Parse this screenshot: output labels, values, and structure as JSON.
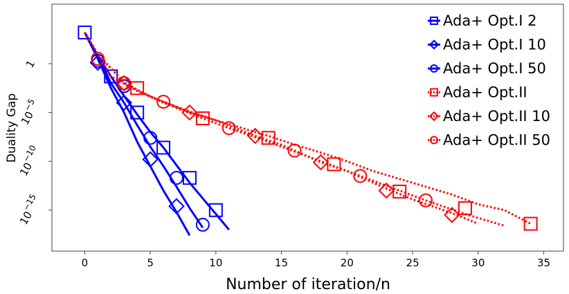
{
  "chart_data": {
    "type": "line",
    "title": "",
    "xlabel": "Number of iteration/n",
    "ylabel": "Duality Gap",
    "xlim": [
      -2.5,
      36.5
    ],
    "ylog_exponent_lim": [
      -19.2,
      6.1
    ],
    "xticks": [
      0,
      5,
      10,
      15,
      20,
      25,
      30,
      35
    ],
    "xtick_labels": [
      "0",
      "5",
      "10",
      "15",
      "20",
      "25",
      "30",
      "35"
    ],
    "yticks": [
      {
        "exp": 0,
        "base": "1",
        "sup": ""
      },
      {
        "exp": -5,
        "base": "10",
        "sup": "−5"
      },
      {
        "exp": -10,
        "base": "10",
        "sup": "−10"
      },
      {
        "exp": -15,
        "base": "10",
        "sup": "−15"
      }
    ],
    "legend_location": "top-right",
    "series": [
      {
        "name": "Ada+ Opt.I 2",
        "color": "#0000ff",
        "linestyle": "solid",
        "marker": "square",
        "x": [
          0,
          1,
          2,
          3,
          4,
          5,
          6,
          7,
          8,
          9,
          10,
          11
        ],
        "y_log10": [
          3.2,
          0.8,
          -1.3,
          -3.3,
          -5.2,
          -7.0,
          -8.6,
          -10.4,
          -12.2,
          -13.8,
          -15.4,
          -17.0
        ],
        "marker_points": [
          [
            0,
            3.2
          ],
          [
            2,
            -1.3
          ],
          [
            4,
            -5.0
          ],
          [
            6,
            -8.6
          ],
          [
            8,
            -11.7
          ],
          [
            10,
            -15.0
          ]
        ]
      },
      {
        "name": "Ada+ Opt.I 10",
        "color": "#0000ff",
        "linestyle": "solid",
        "marker": "diamond",
        "x": [
          0,
          1,
          2,
          3,
          4,
          5,
          6,
          7,
          8
        ],
        "y_log10": [
          3.2,
          0.5,
          -2.5,
          -5.0,
          -8.0,
          -10.5,
          -13.0,
          -15.2,
          -17.6
        ],
        "marker_points": [
          [
            1,
            0.1
          ],
          [
            3,
            -4.0
          ],
          [
            5,
            -9.8
          ],
          [
            7,
            -14.6
          ]
        ]
      },
      {
        "name": "Ada+ Opt.I 50",
        "color": "#0000ff",
        "linestyle": "solid",
        "marker": "circle",
        "x": [
          0,
          1,
          2,
          3,
          4,
          5,
          6,
          7,
          8,
          9
        ],
        "y_log10": [
          3.2,
          0.8,
          -2.0,
          -4.0,
          -6.3,
          -8.5,
          -10.5,
          -12.6,
          -14.8,
          -16.8
        ],
        "marker_points": [
          [
            1,
            0.3
          ],
          [
            3,
            -2.3
          ],
          [
            5,
            -7.6
          ],
          [
            7,
            -11.7
          ],
          [
            9,
            -16.5
          ]
        ]
      },
      {
        "name": "Ada+ Opt.II",
        "color": "#ff0000",
        "linestyle": "dotted",
        "marker": "square",
        "x": [
          0,
          2,
          4,
          6,
          8,
          10,
          12,
          14,
          16,
          18,
          20,
          22,
          24,
          26,
          28,
          30,
          32,
          34
        ],
        "y_log10": [
          3.2,
          -1.3,
          -2.8,
          -3.9,
          -5.0,
          -5.8,
          -6.6,
          -7.4,
          -8.3,
          -9.1,
          -10.0,
          -11.0,
          -11.8,
          -12.6,
          -13.4,
          -14.4,
          -15.0,
          -16.4
        ],
        "marker_points": [
          [
            4,
            -2.5
          ],
          [
            9,
            -5.6
          ],
          [
            14,
            -7.6
          ],
          [
            19,
            -10.3
          ],
          [
            24,
            -13.1
          ],
          [
            29,
            -14.8
          ],
          [
            34,
            -16.4
          ]
        ]
      },
      {
        "name": "Ada+ Opt.II 10",
        "color": "#ff0000",
        "linestyle": "dotted",
        "marker": "diamond",
        "x": [
          0,
          1,
          3,
          5,
          8,
          10,
          13,
          15,
          18,
          20,
          23,
          25,
          28,
          30
        ],
        "y_log10": [
          3.2,
          1.0,
          -1.9,
          -3.4,
          -4.9,
          -5.8,
          -7.4,
          -8.3,
          -10.1,
          -11.0,
          -12.8,
          -13.9,
          -15.3,
          -16.4
        ],
        "marker_points": [
          [
            3,
            -2.0
          ],
          [
            8,
            -5.0
          ],
          [
            13,
            -7.4
          ],
          [
            18,
            -10.1
          ],
          [
            23,
            -13.0
          ],
          [
            28,
            -15.5
          ]
        ]
      },
      {
        "name": "Ada+ Opt.II 50",
        "color": "#ff0000",
        "linestyle": "dotted",
        "marker": "circle",
        "x": [
          0,
          1,
          3,
          6,
          9,
          11,
          14,
          16,
          19,
          21,
          24,
          26,
          29,
          32
        ],
        "y_log10": [
          3.2,
          1.0,
          -2.0,
          -4.0,
          -5.6,
          -6.6,
          -8.0,
          -9.0,
          -10.5,
          -11.5,
          -13.0,
          -14.0,
          -15.4,
          -16.6
        ],
        "marker_points": [
          [
            1,
            0.5
          ],
          [
            3,
            -2.0
          ],
          [
            6,
            -3.9
          ],
          [
            11,
            -6.6
          ],
          [
            16,
            -8.9
          ],
          [
            21,
            -11.5
          ],
          [
            26,
            -14.0
          ]
        ]
      }
    ]
  }
}
